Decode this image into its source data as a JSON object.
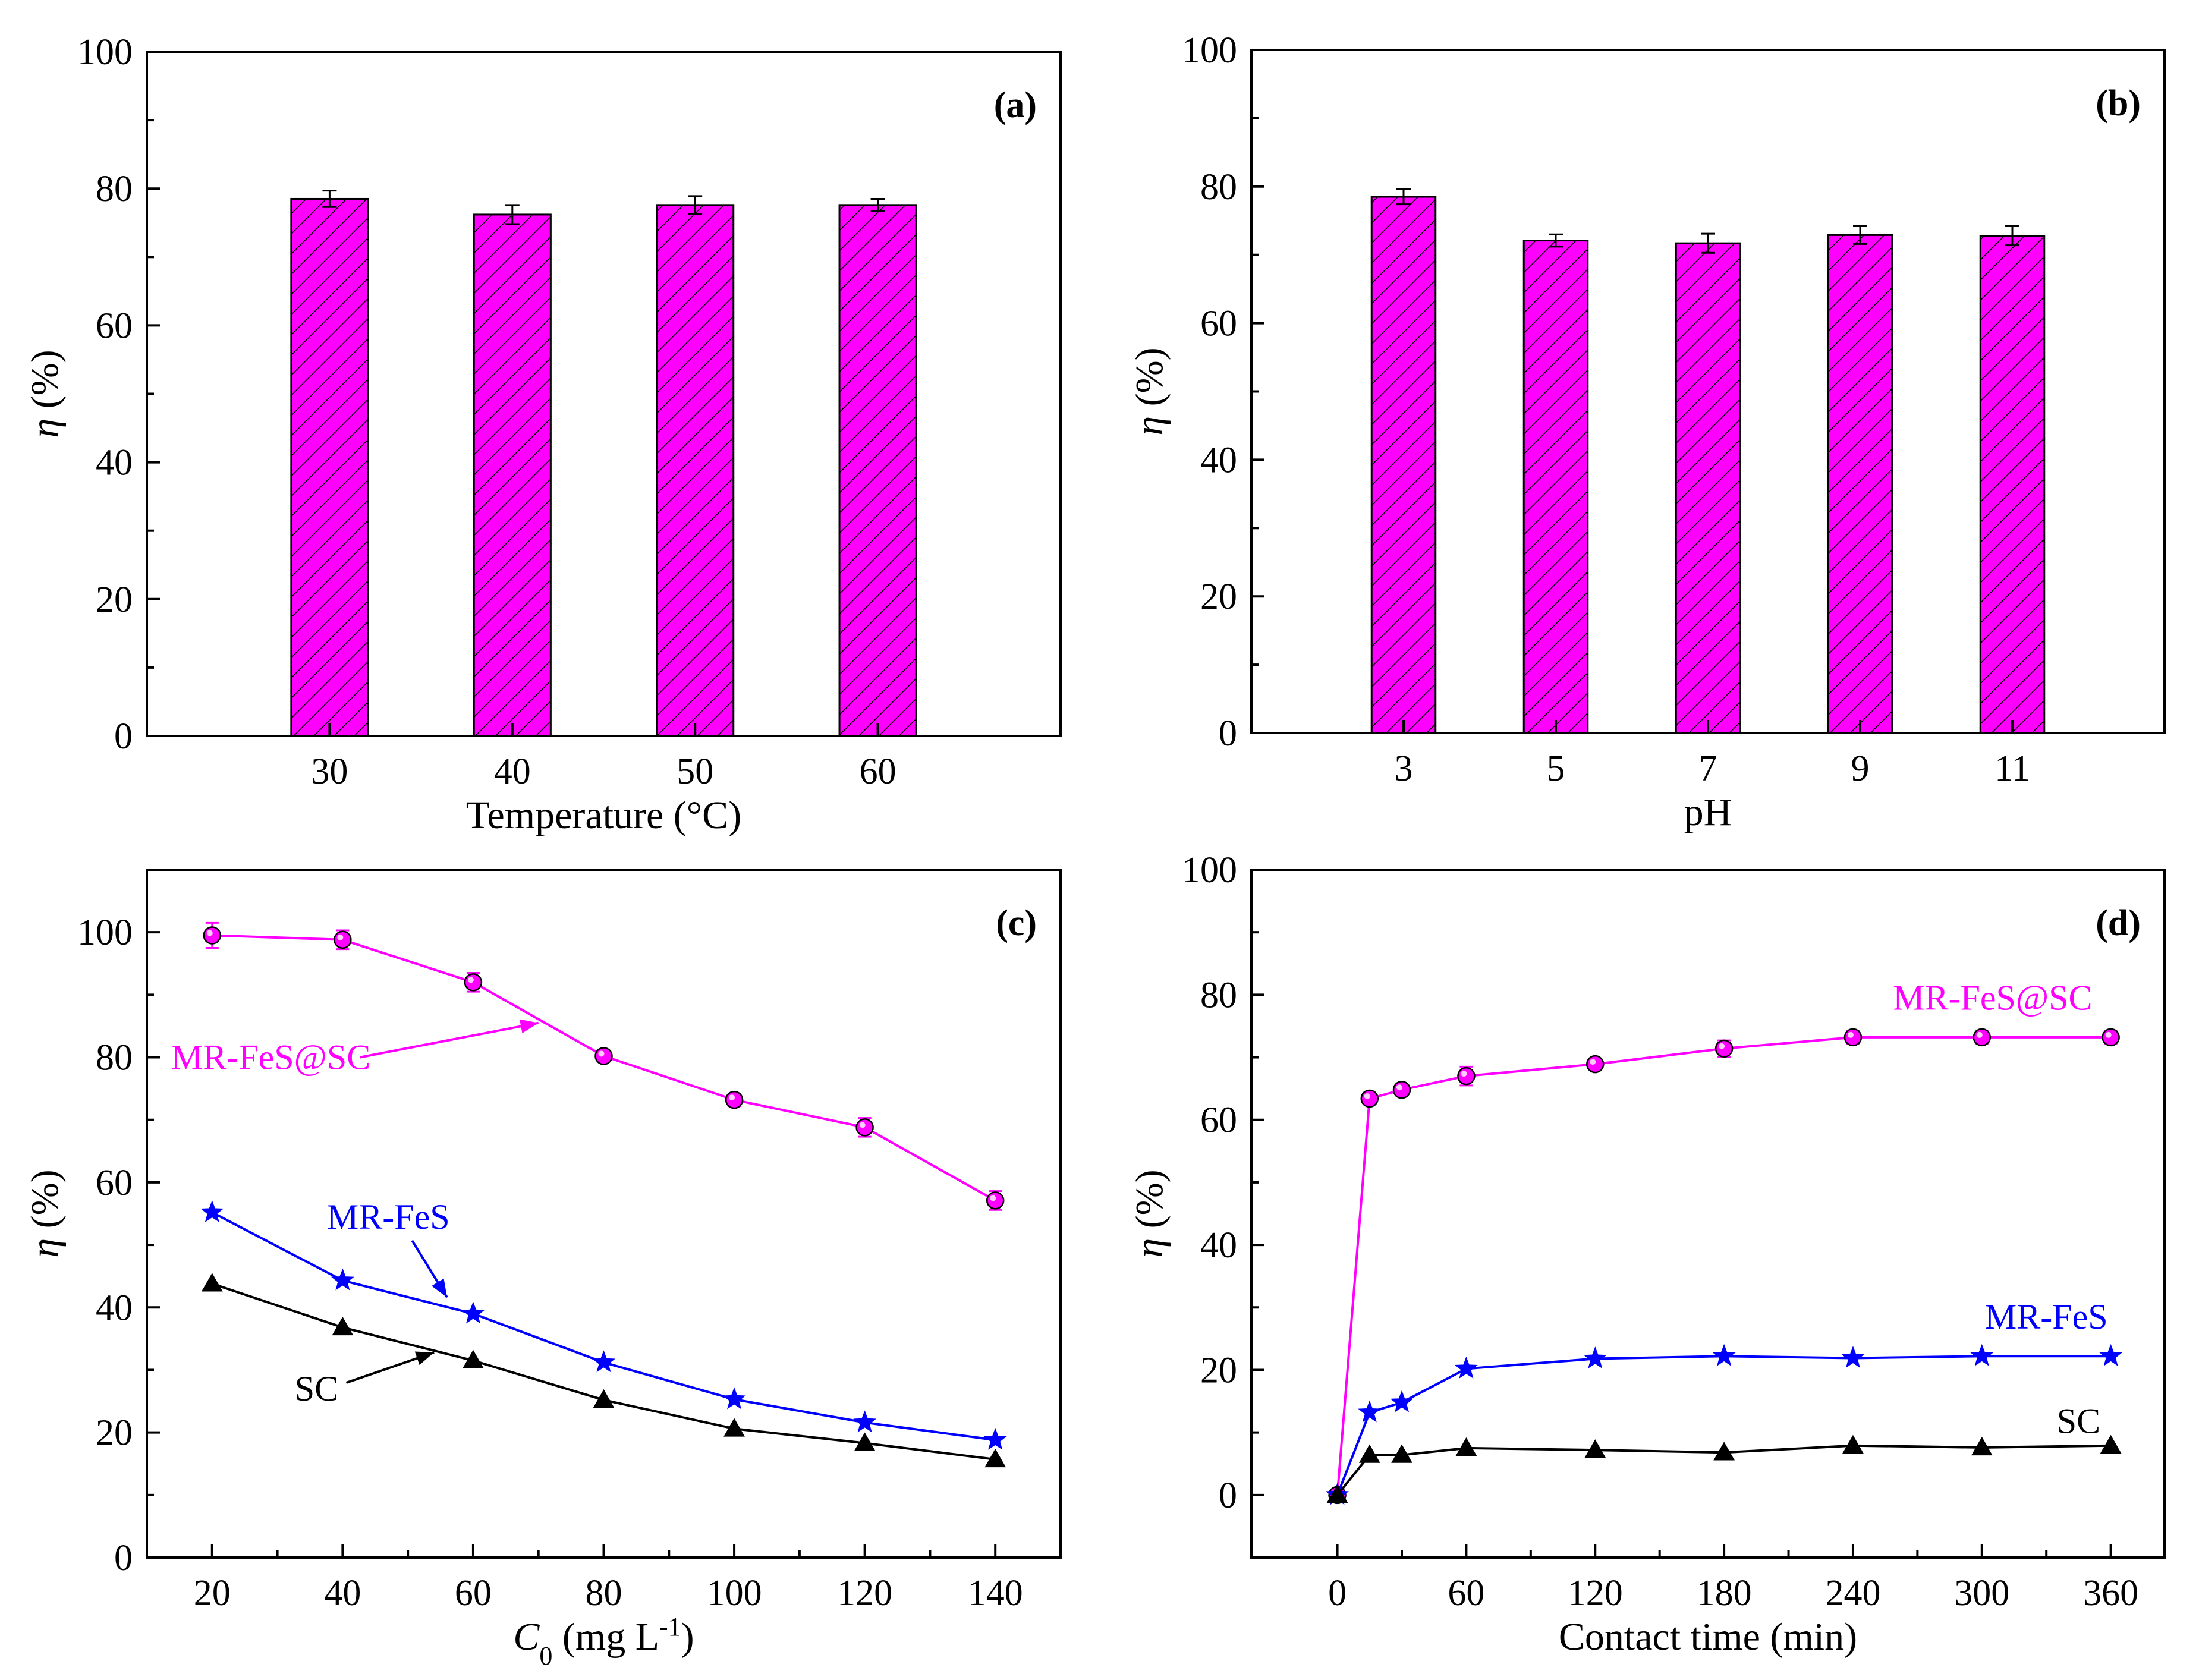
{
  "colors": {
    "magenta": "#FF00FF",
    "blue": "#0000FF",
    "black": "#000000"
  },
  "chart_data": [
    {
      "panel": "(a)",
      "type": "bar",
      "categories": [
        "30",
        "40",
        "50",
        "60"
      ],
      "values": [
        78.5,
        76.2,
        77.6,
        77.6
      ],
      "errors": [
        1.2,
        1.4,
        1.3,
        0.9
      ],
      "xlabel": "Temperature (°C)",
      "ylabel_symbol": "η",
      "ylabel_unit": " (%)",
      "ylim": [
        0,
        100
      ],
      "yticks": [
        "0",
        "20",
        "40",
        "60",
        "80",
        "100"
      ],
      "fill": "#FF00FF",
      "hatch": "diagonal"
    },
    {
      "panel": "(b)",
      "type": "bar",
      "categories": [
        "3",
        "5",
        "7",
        "9",
        "11"
      ],
      "values": [
        78.5,
        72.1,
        71.7,
        72.9,
        72.8
      ],
      "errors": [
        1.1,
        0.9,
        1.4,
        1.3,
        1.4
      ],
      "xlabel": "pH",
      "ylabel_symbol": "η",
      "ylabel_unit": " (%)",
      "ylim": [
        0,
        100
      ],
      "yticks": [
        "0",
        "20",
        "40",
        "60",
        "80",
        "100"
      ],
      "fill": "#FF00FF",
      "hatch": "diagonal"
    },
    {
      "panel": "(c)",
      "type": "line",
      "x": [
        20,
        40,
        60,
        80,
        100,
        120,
        140
      ],
      "xlim": [
        10,
        150
      ],
      "xticks": [
        20,
        40,
        60,
        80,
        100,
        120,
        140
      ],
      "ylim": [
        0,
        110
      ],
      "yticks": [
        0,
        20,
        40,
        60,
        80,
        100
      ],
      "xlabel_symbol": "C",
      "xlabel_sub": "0",
      "xlabel_unit": " (mg L",
      "xlabel_sup": "-1",
      "xlabel_close": ")",
      "ylabel_symbol": "η",
      "ylabel_unit": " (%)",
      "series": [
        {
          "name": "MR-FeS@SC",
          "marker": "circle",
          "color": "#FF00FF",
          "values": [
            99.5,
            98.8,
            92.0,
            80.2,
            73.2,
            68.8,
            57.1
          ],
          "errors": [
            2.0,
            1.5,
            1.5,
            0.8,
            1.0,
            1.5,
            1.5
          ]
        },
        {
          "name": "MR-FeS",
          "marker": "star",
          "color": "#0000FF",
          "values": [
            55.2,
            44.3,
            39.0,
            31.2,
            25.3,
            21.6,
            18.8
          ],
          "errors": [
            0,
            0,
            0,
            0,
            0,
            0,
            0
          ]
        },
        {
          "name": "SC",
          "marker": "triangle",
          "color": "#000000",
          "values": [
            43.8,
            36.8,
            31.5,
            25.2,
            20.6,
            18.3,
            15.7
          ],
          "errors": [
            0,
            0,
            0,
            0,
            0,
            0,
            0
          ]
        }
      ],
      "annotations": [
        {
          "series": "MR-FeS@SC",
          "text": "MR-FeS@SC",
          "at": [
            70,
            85.5
          ],
          "text_at": [
            29,
            80
          ]
        },
        {
          "series": "MR-FeS",
          "text": "MR-FeS",
          "at": [
            56,
            41.6
          ],
          "text_at": [
            47,
            54.5
          ]
        },
        {
          "series": "SC",
          "text": "SC",
          "at": [
            54,
            32.8
          ],
          "text_at": [
            36,
            27
          ]
        }
      ]
    },
    {
      "panel": "(d)",
      "type": "line",
      "x": [
        0,
        15,
        30,
        60,
        120,
        180,
        240,
        300,
        360
      ],
      "xlim": [
        -40,
        385
      ],
      "xticks": [
        0,
        60,
        120,
        180,
        240,
        300,
        360
      ],
      "ylim": [
        -10,
        100
      ],
      "yticks": [
        0,
        20,
        40,
        60,
        80,
        100
      ],
      "xlabel": "Contact time (min)",
      "ylabel_symbol": "η",
      "ylabel_unit": " (%)",
      "series": [
        {
          "name": "MR-FeS@SC",
          "marker": "circle",
          "color": "#FF00FF",
          "values": [
            0,
            63.4,
            64.8,
            67.0,
            68.9,
            71.4,
            73.2,
            73.2,
            73.2
          ],
          "errors": [
            0,
            0.8,
            0.9,
            1.5,
            0.8,
            1.3,
            1.0,
            1.0,
            1.0
          ]
        },
        {
          "name": "MR-FeS",
          "marker": "star",
          "color": "#0000FF",
          "values": [
            0,
            13.2,
            14.8,
            20.2,
            21.8,
            22.2,
            21.9,
            22.2,
            22.2
          ],
          "errors": [
            0,
            0,
            0,
            0,
            0,
            0,
            0,
            0,
            0
          ]
        },
        {
          "name": "SC",
          "marker": "triangle",
          "color": "#000000",
          "values": [
            0,
            6.4,
            6.4,
            7.5,
            7.2,
            6.8,
            7.9,
            7.6,
            7.9
          ],
          "errors": [
            0,
            0,
            0,
            0,
            0,
            0,
            0,
            0,
            0
          ]
        }
      ],
      "labels": [
        {
          "text": "MR-FeS@SC",
          "color": "#FF00FF",
          "at": [
            305,
            79.5
          ]
        },
        {
          "text": "MR-FeS",
          "color": "#0000FF",
          "at": [
            330,
            28.5
          ]
        },
        {
          "text": "SC",
          "color": "#000000",
          "at": [
            345,
            11.8
          ]
        }
      ]
    }
  ]
}
